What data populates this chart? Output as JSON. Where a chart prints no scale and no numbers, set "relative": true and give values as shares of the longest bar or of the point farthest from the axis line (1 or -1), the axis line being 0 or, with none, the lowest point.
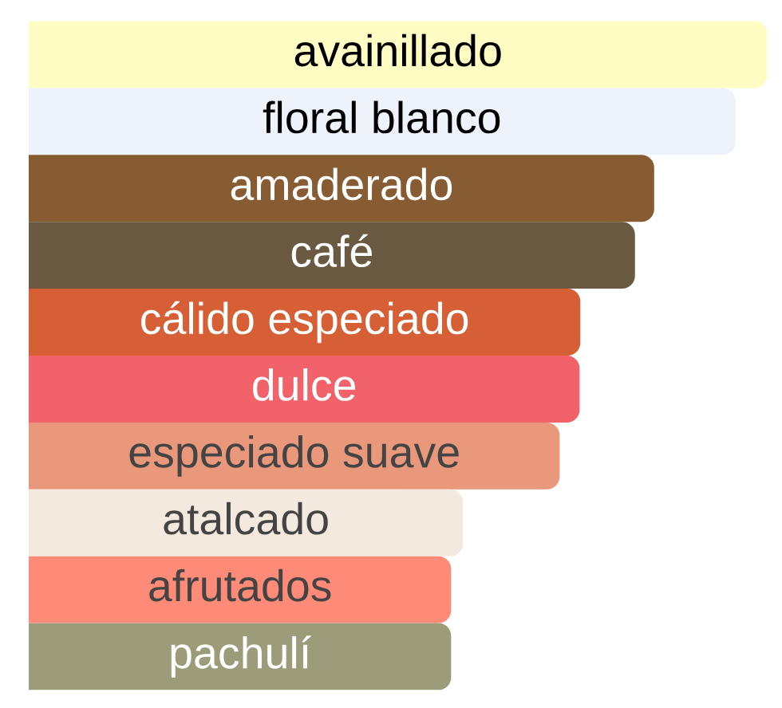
{
  "chart_data": {
    "type": "bar",
    "orientation": "horizontal",
    "relative": true,
    "categories": [
      "avainillado",
      "floral blanco",
      "amaderado",
      "café",
      "cálido especiado",
      "dulce",
      "especiado suave",
      "atalcado",
      "afrutados",
      "pachulí"
    ],
    "values": [
      1,
      0.957,
      0.847,
      0.821,
      0.747,
      0.746,
      0.719,
      0.588,
      0.572,
      0.572
    ],
    "colors": [
      "#fffdc3",
      "#eef2fb",
      "#885c33",
      "#6a5a41",
      "#d75f36",
      "#f2626a",
      "#e9987b",
      "#f3e9df",
      "#fe8a78",
      "#9c9c7a"
    ]
  }
}
